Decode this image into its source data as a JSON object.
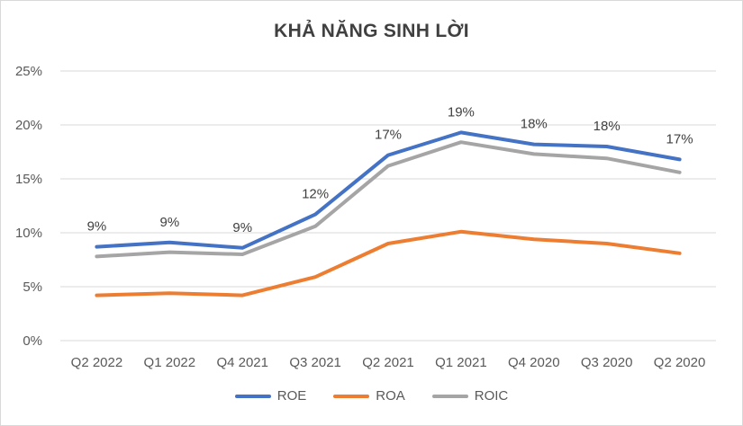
{
  "chart_data": {
    "type": "line",
    "title": "KHẢ NĂNG SINH LỜI",
    "categories": [
      "Q2 2022",
      "Q1 2022",
      "Q4 2021",
      "Q3 2021",
      "Q2 2021",
      "Q1 2021",
      "Q4 2020",
      "Q3 2020",
      "Q2 2020"
    ],
    "ylim": [
      0,
      25
    ],
    "yticks": [
      0,
      5,
      10,
      15,
      20,
      25
    ],
    "ytick_labels": [
      "0%",
      "5%",
      "10%",
      "15%",
      "20%",
      "25%"
    ],
    "grid": true,
    "legend_position": "bottom",
    "series": [
      {
        "name": "ROE",
        "color": "#4472c4",
        "values": [
          8.7,
          9.1,
          8.6,
          11.7,
          17.2,
          19.3,
          18.2,
          18.0,
          16.8
        ],
        "labels": [
          "9%",
          "9%",
          "9%",
          "12%",
          "17%",
          "19%",
          "18%",
          "18%",
          "17%"
        ]
      },
      {
        "name": "ROA",
        "color": "#ed7d31",
        "values": [
          4.2,
          4.4,
          4.2,
          5.9,
          9.0,
          10.1,
          9.4,
          9.0,
          8.1
        ]
      },
      {
        "name": "ROIC",
        "color": "#a5a5a5",
        "values": [
          7.8,
          8.2,
          8.0,
          10.6,
          16.2,
          18.4,
          17.3,
          16.9,
          15.6
        ]
      }
    ]
  }
}
